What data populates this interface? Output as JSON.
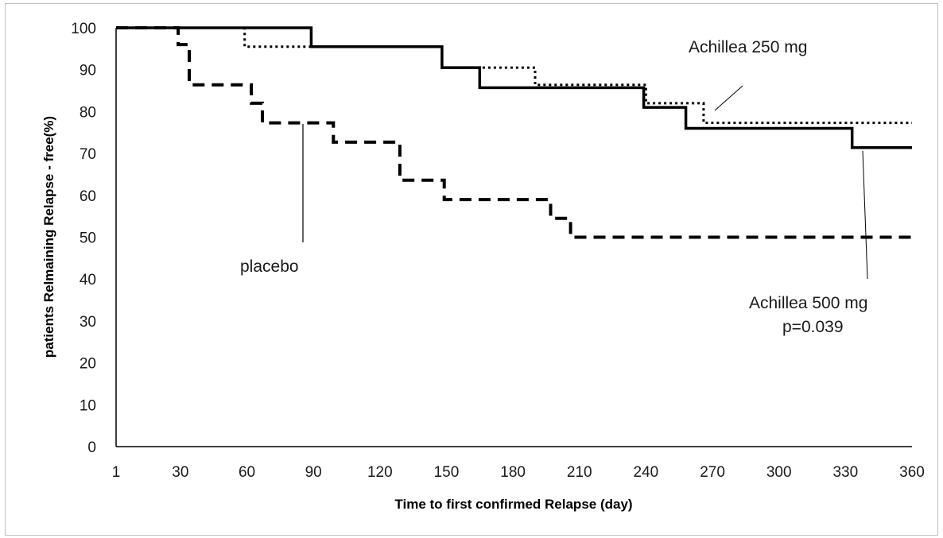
{
  "chart_data": {
    "type": "line",
    "title": "",
    "xlabel": "Time to first confirmed Relapse  (day)",
    "ylabel": "patients Relmaining  Relapse - free(%)",
    "xlim": [
      1,
      360
    ],
    "ylim": [
      0,
      100
    ],
    "x_ticks": [
      "1",
      "30",
      "60",
      "90",
      "120",
      "150",
      "180",
      "210",
      "240",
      "270",
      "300",
      "330",
      "360"
    ],
    "y_ticks": [
      "0",
      "10",
      "20",
      "30",
      "40",
      "50",
      "60",
      "70",
      "80",
      "90",
      "100"
    ],
    "grid": false,
    "series": [
      {
        "name": "Achillea 500 mg",
        "style": "solid",
        "color": "#000000",
        "x": [
          1,
          89,
          89,
          148,
          148,
          165,
          165,
          239,
          239,
          258,
          258,
          333,
          333,
          360
        ],
        "y": [
          100,
          100,
          95.5,
          95.5,
          90.5,
          90.5,
          85.7,
          85.7,
          81,
          81,
          76,
          76,
          71.4,
          71.4
        ]
      },
      {
        "name": "Achillea 250 mg",
        "style": "dotted",
        "color": "#000000",
        "x": [
          1,
          59,
          59,
          148,
          148,
          190,
          190,
          240,
          240,
          266,
          266,
          360
        ],
        "y": [
          100,
          100,
          95.5,
          95.5,
          90.5,
          90.5,
          86.4,
          86.4,
          82,
          82,
          77.3,
          77.3
        ]
      },
      {
        "name": "placebo",
        "style": "dashed",
        "color": "#000000",
        "x": [
          1,
          29,
          29,
          34,
          34,
          62,
          62,
          67,
          67,
          99,
          99,
          129,
          129,
          149,
          149,
          197,
          197,
          206,
          206,
          360
        ],
        "y": [
          100,
          100,
          96,
          96,
          86.4,
          86.4,
          82,
          82,
          77.3,
          77.3,
          72.7,
          72.7,
          63.6,
          63.6,
          59,
          59,
          54.5,
          54.5,
          50,
          50
        ]
      }
    ],
    "annotations": [
      {
        "text": "Achillea 250 mg",
        "series": "Achillea 250 mg"
      },
      {
        "text": "placebo",
        "series": "placebo"
      },
      {
        "text": "Achillea 500 mg",
        "series": "Achillea 500 mg"
      },
      {
        "text": "p=0.039",
        "series": "Achillea 500 mg"
      }
    ]
  }
}
